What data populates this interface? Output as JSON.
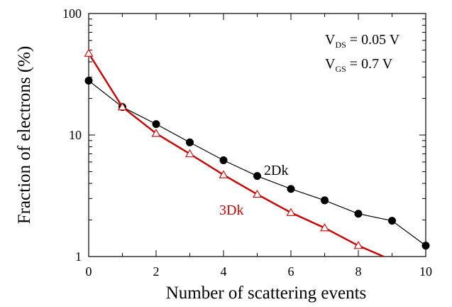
{
  "chart_data": {
    "type": "line",
    "xlabel": "Number of scattering events",
    "ylabel": "Fraction of electrons (%)",
    "xlim": [
      0,
      10
    ],
    "ylim": [
      1,
      100
    ],
    "y_scale": "log",
    "grid": false,
    "x_ticks": [
      0,
      2,
      4,
      6,
      8,
      10
    ],
    "x_tick_labels": [
      "0",
      "2",
      "4",
      "6",
      "8",
      "10"
    ],
    "y_ticks": [
      1,
      10,
      100
    ],
    "y_tick_labels": [
      "1",
      "10",
      "100"
    ],
    "series": [
      {
        "name": "2Dk",
        "color": "#000000",
        "marker": "filled-circle",
        "x": [
          0,
          1,
          2,
          3,
          4,
          5,
          6,
          7,
          8,
          9,
          10
        ],
        "values": [
          28,
          17,
          12.3,
          8.7,
          6.2,
          4.6,
          3.6,
          2.9,
          2.25,
          1.97,
          1.23
        ]
      },
      {
        "name": "3Dk",
        "color": "#cc0000",
        "marker": "open-triangle",
        "x": [
          0,
          1,
          2,
          3,
          4,
          5,
          6,
          7,
          8,
          8.75
        ],
        "values": [
          47,
          17,
          10.3,
          7.0,
          4.7,
          3.25,
          2.3,
          1.72,
          1.23,
          1.0
        ],
        "marker_count": 9
      }
    ],
    "annotations": {
      "vds": {
        "main": "V",
        "sub": "DS",
        "rest": " = 0.05 V"
      },
      "vgs": {
        "main": "V",
        "sub": "GS",
        "rest": " = 0.7 V"
      }
    }
  }
}
